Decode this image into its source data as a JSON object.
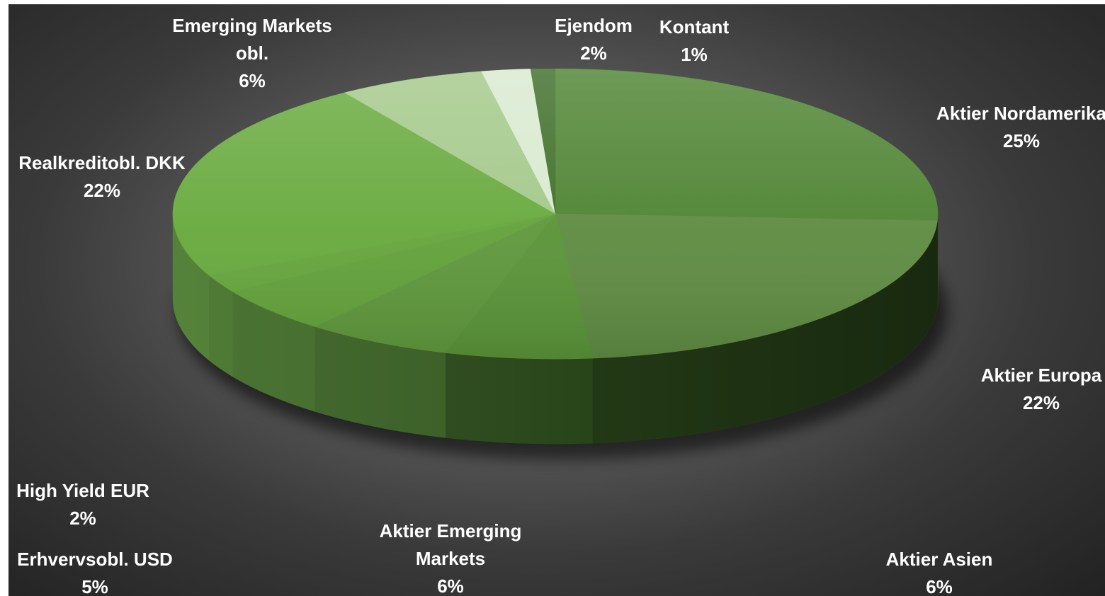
{
  "chart_data": {
    "type": "pie",
    "style": "3d",
    "background": "dark-radial-gradient",
    "slices": [
      {
        "label": [
          "Aktier Nordamerika"
        ],
        "value": 25,
        "pct": "25%",
        "color": "#4e8432",
        "side": "#2e5020"
      },
      {
        "label": [
          "Aktier Europa"
        ],
        "value": 22,
        "pct": "22%",
        "color": "#5f8c43",
        "side": "#263f18"
      },
      {
        "label": [
          "Aktier Asien"
        ],
        "value": 6,
        "pct": "6%",
        "color": "#5a9438",
        "side": "#2c4c1c"
      },
      {
        "label": [
          "Aktier Emerging",
          "Markets"
        ],
        "value": 6,
        "pct": "6%",
        "color": "#5f983c",
        "side": "#3a6224"
      },
      {
        "label": [
          "Erhvervsobl. USD"
        ],
        "value": 5,
        "pct": "5%",
        "color": "#63a23b",
        "side": "#3f6b27"
      },
      {
        "label": [
          "High Yield EUR"
        ],
        "value": 2,
        "pct": "2%",
        "color": "#66a63d",
        "side": "#447329"
      },
      {
        "label": [
          "Realkreditobl. DKK"
        ],
        "value": 22,
        "pct": "22%",
        "color": "#68aa3e",
        "side": "#4a7a2d"
      },
      {
        "label": [
          "Emerging Markets",
          "obl."
        ],
        "value": 6,
        "pct": "6%",
        "color": "#a4c98a",
        "side": "#7ea665"
      },
      {
        "label": [
          "Ejendom"
        ],
        "value": 2,
        "pct": "2%",
        "color": "#d9ead0",
        "side": "#b7ceab"
      },
      {
        "label": [
          "Kontant"
        ],
        "value": 1,
        "pct": "1%",
        "color": "#3f6f29",
        "side": "#2a4a1b"
      }
    ]
  }
}
